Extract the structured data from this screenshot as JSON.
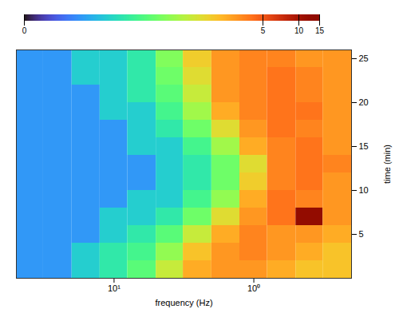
{
  "chart_data": {
    "type": "heatmap",
    "x_label": "frequency (Hz)",
    "y_label": "time (min)",
    "log": "x",
    "xlim": [
      50,
      0.2
    ],
    "xticks": [
      {
        "value": 10,
        "label": "10¹"
      },
      {
        "value": 1,
        "label": "10⁰"
      }
    ],
    "ylim": [
      0,
      26
    ],
    "yticks": [
      5,
      10,
      15,
      20,
      25
    ],
    "zlim": [
      0,
      15
    ],
    "zticks": [
      0,
      5,
      10,
      15
    ],
    "frequency_bins": [
      50,
      32,
      20,
      12.6,
      8,
      5,
      3.2,
      2,
      1.26,
      0.8,
      0.5,
      0.32,
      0.2
    ],
    "time_bins": [
      0,
      2,
      4,
      6,
      8,
      10,
      12,
      14,
      16,
      18,
      20,
      22,
      24,
      26
    ],
    "cells": [
      [
        0.1,
        0.1,
        0.2,
        0.3,
        0.5,
        1.2,
        2.5,
        3,
        3,
        2.5,
        2,
        2
      ],
      [
        0.1,
        0.1,
        0.2,
        0.3,
        0.4,
        0.8,
        2,
        3,
        3.5,
        3,
        2.5,
        2
      ],
      [
        0.1,
        0.1,
        0.1,
        0.2,
        0.3,
        0.5,
        1.2,
        2.5,
        3.5,
        3,
        3,
        2.5
      ],
      [
        0.1,
        0.1,
        0.1,
        0.2,
        0.2,
        0.3,
        0.6,
        1.5,
        3,
        4,
        13,
        3
      ],
      [
        0.1,
        0.1,
        0.1,
        0.1,
        0.2,
        0.2,
        0.4,
        0.8,
        2.5,
        4,
        3.5,
        3
      ],
      [
        0.1,
        0.1,
        0.1,
        0.1,
        0.1,
        0.2,
        0.3,
        0.6,
        1.8,
        3.5,
        4,
        3
      ],
      [
        0.1,
        0.1,
        0.1,
        0.1,
        0.1,
        0.2,
        0.3,
        0.6,
        1.5,
        3.5,
        4,
        3.5
      ],
      [
        0.1,
        0.1,
        0.1,
        0.1,
        0.2,
        0.2,
        0.4,
        0.9,
        2.5,
        3.5,
        4,
        3
      ],
      [
        0.1,
        0.1,
        0.1,
        0.1,
        0.2,
        0.3,
        0.6,
        1.5,
        3,
        4,
        3.5,
        3
      ],
      [
        0.1,
        0.1,
        0.1,
        0.2,
        0.2,
        0.4,
        0.9,
        2.5,
        3.5,
        4,
        4,
        3
      ],
      [
        0.1,
        0.1,
        0.1,
        0.2,
        0.3,
        0.5,
        1.2,
        3,
        3.5,
        4,
        3.5,
        3
      ],
      [
        0.1,
        0.1,
        0.2,
        0.2,
        0.3,
        0.6,
        1.5,
        3,
        3.5,
        4,
        3.5,
        3
      ],
      [
        0.1,
        0.1,
        0.2,
        0.2,
        0.3,
        0.7,
        1.8,
        3,
        3.5,
        3.5,
        3,
        3
      ]
    ]
  }
}
